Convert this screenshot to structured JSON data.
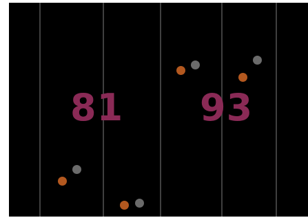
{
  "game": {
    "background_color": "#000000",
    "lane_line_color": "#3f3f3f",
    "score_color": "#8a2a56",
    "scores": {
      "left": "81",
      "right": "93"
    },
    "pieces": [
      {
        "name": "orange-dot",
        "color": "#b3581f"
      },
      {
        "name": "gray-dot",
        "color": "#6b6b6b"
      }
    ]
  }
}
